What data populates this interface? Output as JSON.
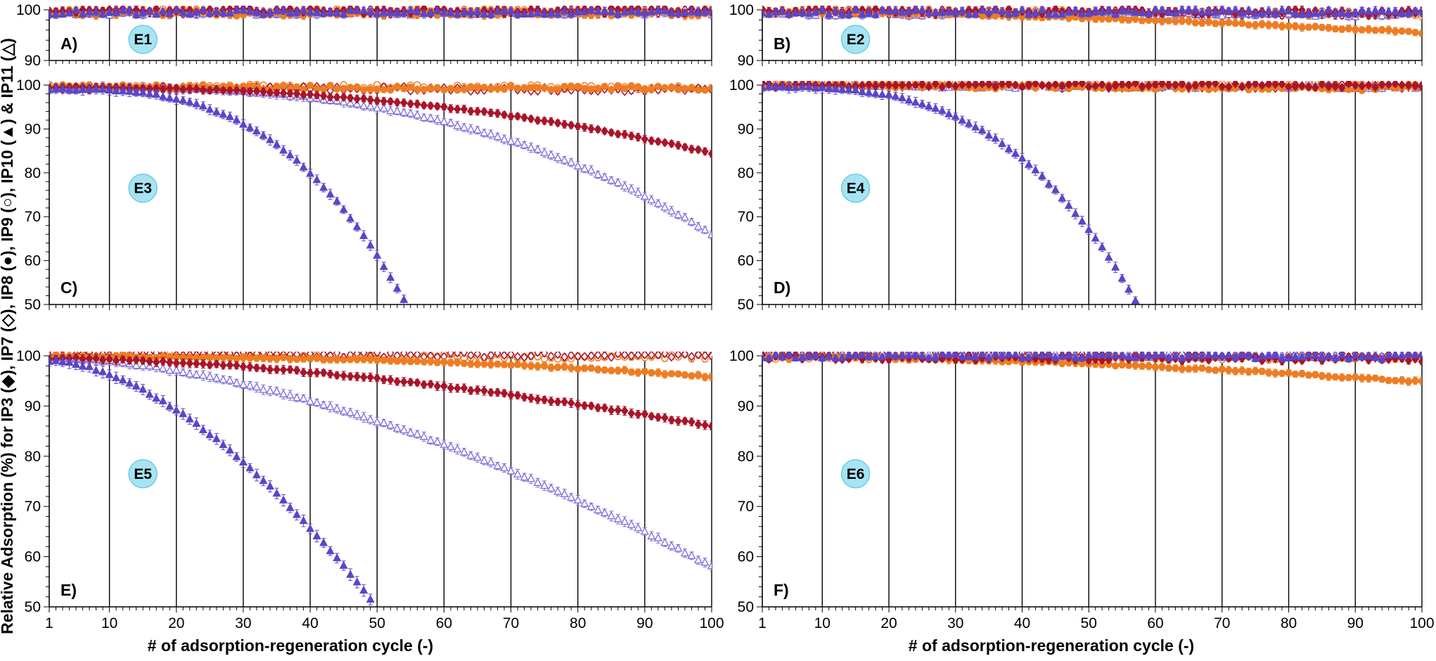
{
  "figure": {
    "ylabel": "Relative Adsorption (%) for IP3 (◆), IP7 (◇), IP8 (●), IP9 (○), IP10 (▲) & IP11 (△)",
    "xlabel": "# of adsorption-regeneration cycle (-)"
  },
  "colors": {
    "IP3": "#a8152a",
    "IP7": "#a8152a",
    "IP8": "#ed7d23",
    "IP9": "#ed7d23",
    "IP10": "#5a46c8",
    "IP11": "#7b6ad8",
    "badge_fill": "#a6e4f3",
    "badge_stroke": "#6fcbe3"
  },
  "chart_data": [
    {
      "type": "scatter",
      "panel": "A)",
      "label": "E1",
      "xlim": [
        1,
        100
      ],
      "ylim": [
        90,
        100
      ],
      "x_ticks": [
        1,
        10,
        20,
        30,
        40,
        50,
        60,
        70,
        80,
        90,
        100
      ],
      "y_ticks": [
        90,
        100
      ],
      "grid": "vertical lines every 10 cycles",
      "series": [
        {
          "name": "IP3",
          "marker": "diamond-filled",
          "start": 99.8,
          "end": 99.8,
          "shape": 1,
          "error": 0.8
        },
        {
          "name": "IP7",
          "marker": "diamond-open",
          "start": 99.6,
          "end": 99.6,
          "shape": 1,
          "error": 0.8
        },
        {
          "name": "IP8",
          "marker": "circle-filled",
          "start": 99.3,
          "end": 99.3,
          "shape": 1,
          "error": 0.8
        },
        {
          "name": "IP9",
          "marker": "circle-open",
          "start": 99.7,
          "end": 99.7,
          "shape": 1,
          "error": 0.8
        },
        {
          "name": "IP10",
          "marker": "triangle-filled",
          "start": 99.5,
          "end": 99.5,
          "shape": 1,
          "error": 0.8
        },
        {
          "name": "IP11",
          "marker": "triangle-open",
          "start": 99.4,
          "end": 99.4,
          "shape": 1,
          "error": 0.8
        }
      ]
    },
    {
      "type": "scatter",
      "panel": "B)",
      "label": "E2",
      "xlim": [
        1,
        100
      ],
      "ylim": [
        90,
        100
      ],
      "x_ticks": [
        1,
        10,
        20,
        30,
        40,
        50,
        60,
        70,
        80,
        90,
        100
      ],
      "y_ticks": [
        90,
        100
      ],
      "grid": "vertical lines every 10 cycles",
      "series": [
        {
          "name": "IP3",
          "marker": "diamond-filled",
          "start": 99.8,
          "end": 99.5,
          "shape": 1,
          "error": 0.8
        },
        {
          "name": "IP7",
          "marker": "diamond-open",
          "start": 99.6,
          "end": 99.3,
          "shape": 1,
          "error": 0.8
        },
        {
          "name": "IP8",
          "marker": "circle-filled",
          "start": 99.5,
          "end": 95.5,
          "shape": 1.8,
          "error": 0.8
        },
        {
          "name": "IP9",
          "marker": "circle-open",
          "start": 99.7,
          "end": 99.2,
          "shape": 1,
          "error": 0.8
        },
        {
          "name": "IP10",
          "marker": "triangle-filled",
          "start": 99.5,
          "end": 99.6,
          "shape": 1,
          "error": 0.8
        },
        {
          "name": "IP11",
          "marker": "triangle-open",
          "start": 99.3,
          "end": 99.1,
          "shape": 1,
          "error": 0.8
        }
      ]
    },
    {
      "type": "scatter",
      "panel": "C)",
      "label": "E3",
      "xlim": [
        1,
        100
      ],
      "ylim": [
        50,
        100
      ],
      "x_ticks": [
        1,
        10,
        20,
        30,
        40,
        50,
        60,
        70,
        80,
        90,
        100
      ],
      "y_ticks": [
        50,
        60,
        70,
        80,
        90,
        100
      ],
      "grid": "vertical lines every 10 cycles",
      "series": [
        {
          "name": "IP3",
          "marker": "diamond-filled",
          "start": 99.5,
          "end": 84.5,
          "shape": 2.3,
          "error": 0.9
        },
        {
          "name": "IP7",
          "marker": "diamond-open",
          "start": 99.3,
          "end": 99.0,
          "shape": 1,
          "error": 0.7
        },
        {
          "name": "IP8",
          "marker": "circle-filled",
          "start": 99.6,
          "end": 99.2,
          "shape": 1,
          "error": 0.7
        },
        {
          "name": "IP9",
          "marker": "circle-open",
          "start": 99.8,
          "end": 99.4,
          "shape": 1,
          "error": 0.7
        },
        {
          "name": "IP10",
          "marker": "triangle-filled",
          "start": 99.0,
          "end": 51.0,
          "end_x": 54,
          "shape": 3.0,
          "error": 1.2
        },
        {
          "name": "IP11",
          "marker": "triangle-open",
          "start": 99.5,
          "end": 66.0,
          "shape": 2.8,
          "error": 1.1
        }
      ]
    },
    {
      "type": "scatter",
      "panel": "D)",
      "label": "E4",
      "xlim": [
        1,
        100
      ],
      "ylim": [
        50,
        100
      ],
      "x_ticks": [
        1,
        10,
        20,
        30,
        40,
        50,
        60,
        70,
        80,
        90,
        100
      ],
      "y_ticks": [
        50,
        60,
        70,
        80,
        90,
        100
      ],
      "grid": "vertical lines every 10 cycles",
      "series": [
        {
          "name": "IP3",
          "marker": "diamond-filled",
          "start": 100.0,
          "end": 99.9,
          "shape": 1,
          "error": 0.7
        },
        {
          "name": "IP7",
          "marker": "diamond-open",
          "start": 99.8,
          "end": 99.6,
          "shape": 1,
          "error": 0.7
        },
        {
          "name": "IP8",
          "marker": "circle-filled",
          "start": 100.0,
          "end": 99.1,
          "shape": 1,
          "error": 0.7
        },
        {
          "name": "IP9",
          "marker": "circle-open",
          "start": 100.2,
          "end": 100.0,
          "shape": 1,
          "error": 0.7
        },
        {
          "name": "IP10",
          "marker": "triangle-filled",
          "start": 99.5,
          "end": 51.0,
          "end_x": 57,
          "shape": 3.0,
          "error": 1.2
        },
        {
          "name": "IP11",
          "marker": "triangle-open",
          "start": 99.8,
          "end": 99.6,
          "shape": 1,
          "error": 0.7
        }
      ]
    },
    {
      "type": "scatter",
      "panel": "E)",
      "label": "E5",
      "xlim": [
        1,
        100
      ],
      "ylim": [
        50,
        100
      ],
      "x_ticks": [
        1,
        10,
        20,
        30,
        40,
        50,
        60,
        70,
        80,
        90,
        100
      ],
      "y_ticks": [
        50,
        60,
        70,
        80,
        90,
        100
      ],
      "grid": "vertical lines every 10 cycles",
      "series": [
        {
          "name": "IP3",
          "marker": "diamond-filled",
          "start": 99.5,
          "end": 86.0,
          "shape": 1.7,
          "error": 0.9
        },
        {
          "name": "IP7",
          "marker": "diamond-open",
          "start": 100.2,
          "end": 100.2,
          "shape": 1,
          "error": 0.7
        },
        {
          "name": "IP8",
          "marker": "circle-filled",
          "start": 99.8,
          "end": 95.8,
          "shape": 2.5,
          "error": 0.8
        },
        {
          "name": "IP9",
          "marker": "circle-open",
          "start": 100.0,
          "end": 99.8,
          "shape": 1,
          "error": 0.7
        },
        {
          "name": "IP10",
          "marker": "triangle-filled",
          "start": 99.0,
          "end": 51.5,
          "end_x": 49,
          "shape": 1.7,
          "error": 1.2
        },
        {
          "name": "IP11",
          "marker": "triangle-open",
          "start": 99.5,
          "end": 58.0,
          "shape": 1.7,
          "error": 1.0
        }
      ]
    },
    {
      "type": "scatter",
      "panel": "F)",
      "label": "E6",
      "xlim": [
        1,
        100
      ],
      "ylim": [
        50,
        100
      ],
      "x_ticks": [
        1,
        10,
        20,
        30,
        40,
        50,
        60,
        70,
        80,
        90,
        100
      ],
      "y_ticks": [
        50,
        60,
        70,
        80,
        90,
        100
      ],
      "grid": "vertical lines every 10 cycles",
      "series": [
        {
          "name": "IP3",
          "marker": "diamond-filled",
          "start": 99.8,
          "end": 99.3,
          "shape": 1,
          "error": 0.7
        },
        {
          "name": "IP7",
          "marker": "diamond-open",
          "start": 100.2,
          "end": 100.0,
          "shape": 1,
          "error": 0.7
        },
        {
          "name": "IP8",
          "marker": "circle-filled",
          "start": 99.8,
          "end": 94.8,
          "shape": 1.8,
          "error": 0.8
        },
        {
          "name": "IP9",
          "marker": "circle-open",
          "start": 99.7,
          "end": 99.6,
          "shape": 1,
          "error": 0.7
        },
        {
          "name": "IP10",
          "marker": "triangle-filled",
          "start": 100.0,
          "end": 99.8,
          "shape": 1,
          "error": 0.7
        },
        {
          "name": "IP11",
          "marker": "triangle-open",
          "start": 100.2,
          "end": 100.0,
          "shape": 1,
          "error": 0.7
        }
      ]
    }
  ]
}
